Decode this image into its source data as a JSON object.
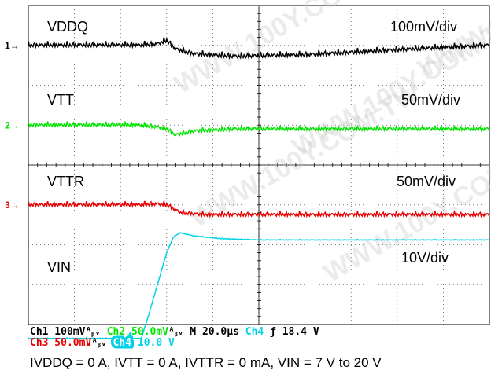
{
  "chart_data": {
    "type": "line",
    "time_scale": "M 20.0µs",
    "grid": true,
    "watermark": "WWW.100Y.COM.TW",
    "caption": "IVDDQ = 0 A, IVTT = 0 A, IVTTR = 0 mA, VIN = 7 V to 20 V",
    "channels": [
      {
        "id": "1",
        "name": "VDDQ",
        "scale": "100mV/div",
        "color": "#000000",
        "marker_div": 1.0,
        "x_div": [
          0,
          2.4,
          2.8,
          3.0,
          3.2,
          3.6,
          4.5,
          6,
          8,
          10
        ],
        "y_div": [
          1.0,
          1.0,
          0.97,
          0.88,
          1.1,
          1.22,
          1.28,
          1.24,
          1.12,
          1.0
        ]
      },
      {
        "id": "2",
        "name": "VTT",
        "scale": "50mV/div",
        "color": "#00e600",
        "marker_div": 3.0,
        "x_div": [
          0,
          2.4,
          2.8,
          3.0,
          3.2,
          3.6,
          4.5,
          10
        ],
        "y_div": [
          3.0,
          3.0,
          3.05,
          3.1,
          3.25,
          3.15,
          3.1,
          3.1
        ]
      },
      {
        "id": "3",
        "name": "VTTR",
        "scale": "50mV/div",
        "color": "#e60000",
        "marker_div": 5.0,
        "x_div": [
          0,
          2.4,
          2.8,
          3.0,
          3.3,
          3.8,
          4.5,
          10
        ],
        "y_div": [
          5.0,
          5.0,
          4.98,
          5.0,
          5.2,
          5.25,
          5.25,
          5.25
        ]
      },
      {
        "id": "4",
        "name": "VIN",
        "scale": "10V/div",
        "color": "#00d2e6",
        "marker_div": 9.4,
        "x_div": [
          0,
          2.45,
          2.6,
          2.8,
          3.0,
          3.15,
          3.3,
          3.6,
          4.2,
          5,
          10
        ],
        "y_div": [
          8.35,
          8.35,
          7.8,
          7.0,
          6.2,
          5.8,
          5.7,
          5.78,
          5.85,
          5.88,
          5.88
        ]
      }
    ],
    "status_line_1": [
      {
        "text": "Ch1",
        "color": "#000000"
      },
      {
        "text": "  100mV",
        "color": "#000000"
      },
      {
        "text": "ᴬᵦᵥ",
        "color": "#000000"
      },
      {
        "text": "  Ch2",
        "color": "#00e600"
      },
      {
        "text": "  50.0mV",
        "color": "#00e600"
      },
      {
        "text": "ᴬᵦᵥ",
        "color": "#000000"
      },
      {
        "text": "  M 20.0µs",
        "color": "#000000"
      },
      {
        "text": "  Ch4",
        "color": "#00d2e6"
      },
      {
        "text": " ƒ",
        "color": "#000000"
      },
      {
        "text": "     18.4 V",
        "color": "#000000"
      }
    ],
    "status_line_2": [
      {
        "text": "Ch3",
        "color": "#e60000"
      },
      {
        "text": "  50.0mV",
        "color": "#e60000"
      },
      {
        "text": "ᴬᵦᵥ",
        "color": "#000000"
      },
      {
        "text": "  Ch4",
        "color": "#00d2e6",
        "inverse": true
      },
      {
        "text": "    10.0 V",
        "color": "#00d2e6"
      }
    ]
  }
}
